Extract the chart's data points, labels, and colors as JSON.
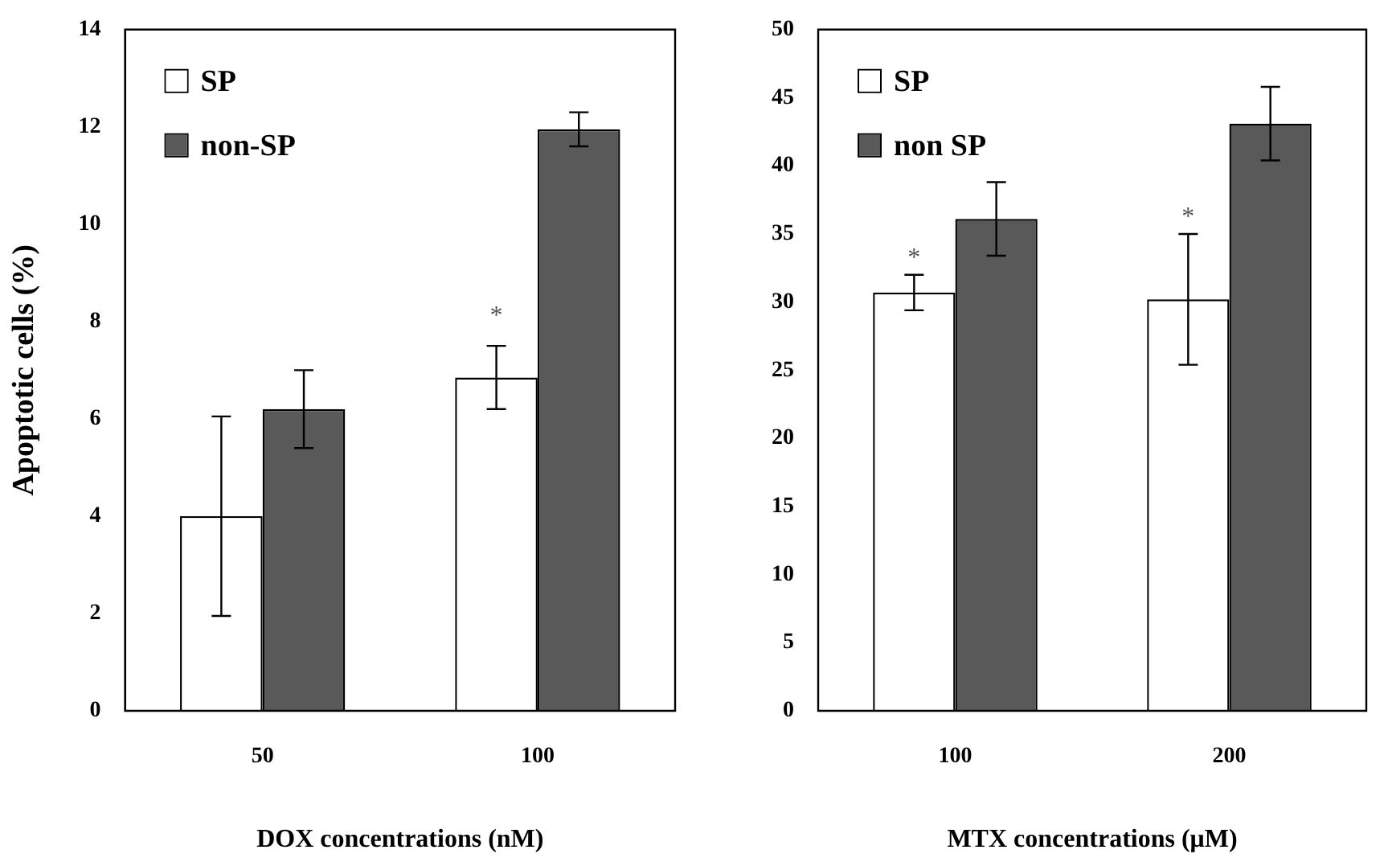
{
  "chart_data": [
    {
      "type": "bar",
      "ylabel": "Apoptotic cells (%)",
      "xlabel": "DOX concentrations (nM)",
      "categories": [
        "50",
        "100"
      ],
      "series": [
        {
          "name": "SP",
          "color": "#ffffff",
          "values": [
            4.0,
            6.85
          ],
          "errors": [
            2.05,
            0.65
          ]
        },
        {
          "name": "non-SP",
          "color": "#595959",
          "values": [
            6.2,
            11.95
          ],
          "errors": [
            0.8,
            0.35
          ]
        }
      ],
      "ylim": [
        0,
        14
      ],
      "yticks": [
        0,
        2,
        4,
        6,
        8,
        10,
        12,
        14
      ],
      "grid": false,
      "legend": "top left",
      "annotations": [
        {
          "text": "*",
          "x": "100",
          "y": 8.1
        }
      ]
    },
    {
      "type": "bar",
      "xlabel": "MTX concentrations (μM)",
      "categories": [
        "100",
        "200"
      ],
      "series": [
        {
          "name": "SP",
          "color": "#ffffff",
          "values": [
            30.7,
            30.2
          ],
          "errors": [
            1.3,
            4.8
          ]
        },
        {
          "name": "non SP",
          "color": "#595959",
          "values": [
            36.1,
            43.1
          ],
          "errors": [
            2.7,
            2.7
          ]
        }
      ],
      "ylim": [
        0,
        50
      ],
      "yticks": [
        0,
        5,
        10,
        15,
        20,
        25,
        30,
        35,
        40,
        45,
        50
      ],
      "grid": false,
      "legend": "top left",
      "annotations": [
        {
          "text": "*",
          "x": "100",
          "y": 33.2
        },
        {
          "text": "*",
          "x": "200",
          "y": 36.2
        }
      ]
    }
  ]
}
